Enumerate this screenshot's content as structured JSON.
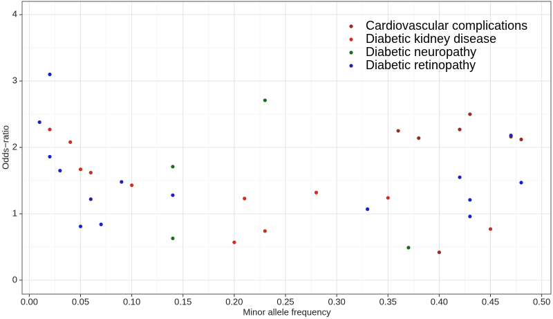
{
  "chart_data": {
    "type": "scatter",
    "x_label": "Minor allele frequency",
    "y_label": "Odds−ratio",
    "xlim": [
      -0.007,
      0.509
    ],
    "ylim": [
      -0.21,
      4.2
    ],
    "xticks": [
      {
        "value": 0,
        "label": "0.00"
      },
      {
        "value": 0.05,
        "label": "0.05"
      },
      {
        "value": 0.1,
        "label": "0.10"
      },
      {
        "value": 0.15,
        "label": "0.15"
      },
      {
        "value": 0.2,
        "label": "0.20"
      },
      {
        "value": 0.25,
        "label": "0.25"
      },
      {
        "value": 0.3,
        "label": "0.30"
      },
      {
        "value": 0.35,
        "label": "0.35"
      },
      {
        "value": 0.4,
        "label": "0.40"
      },
      {
        "value": 0.45,
        "label": "0.45"
      },
      {
        "value": 0.5,
        "label": "0.50"
      }
    ],
    "yticks": [
      0,
      1,
      2,
      3,
      4
    ],
    "grid": true,
    "legend": "top-right",
    "series": [
      {
        "name": "Cardiovascular complications",
        "color": "#9b2a22",
        "x": [
          0.36,
          0.38,
          0.4,
          0.42,
          0.43,
          0.47,
          0.48
        ],
        "values": [
          2.25,
          2.14,
          0.42,
          2.27,
          2.5,
          2.16,
          2.12
        ]
      },
      {
        "name": "Diabetic kidney disease",
        "color": "#d42a20",
        "x": [
          0.02,
          0.04,
          0.05,
          0.06,
          0.1,
          0.2,
          0.21,
          0.23,
          0.28,
          0.35,
          0.45
        ],
        "values": [
          2.27,
          2.08,
          1.67,
          1.62,
          1.43,
          0.57,
          1.23,
          0.74,
          1.32,
          1.24,
          0.77
        ]
      },
      {
        "name": "Diabetic neuropathy",
        "color": "#1a6b1a",
        "x": [
          0.14,
          0.14,
          0.23,
          0.37
        ],
        "values": [
          1.71,
          0.63,
          2.71,
          0.49
        ]
      },
      {
        "name": "Diabetic retinopathy",
        "color": "#1a1fcc",
        "x": [
          0.02,
          0.01,
          0.02,
          0.03,
          0.06,
          0.05,
          0.07,
          0.09,
          0.14,
          0.33,
          0.42,
          0.43,
          0.43,
          0.47,
          0.48
        ],
        "values": [
          3.1,
          2.38,
          1.86,
          1.65,
          1.22,
          0.81,
          0.84,
          1.48,
          1.28,
          1.07,
          1.55,
          1.21,
          0.96,
          2.18,
          1.47
        ]
      }
    ]
  }
}
